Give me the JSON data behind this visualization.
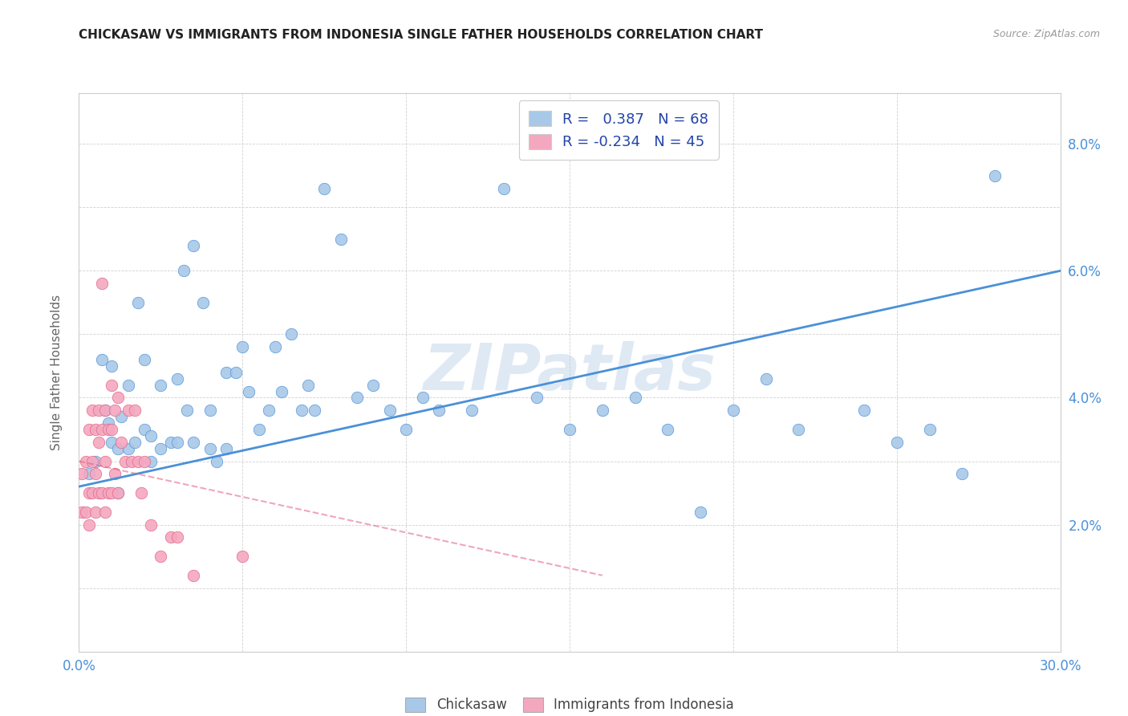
{
  "title": "CHICKASAW VS IMMIGRANTS FROM INDONESIA SINGLE FATHER HOUSEHOLDS CORRELATION CHART",
  "source": "Source: ZipAtlas.com",
  "ylabel": "Single Father Households",
  "x_min": 0.0,
  "x_max": 0.3,
  "y_min": 0.0,
  "y_max": 0.088,
  "x_ticks": [
    0.0,
    0.05,
    0.1,
    0.15,
    0.2,
    0.25,
    0.3
  ],
  "x_tick_labels": [
    "0.0%",
    "",
    "",
    "",
    "",
    "",
    "30.0%"
  ],
  "y_ticks": [
    0.0,
    0.01,
    0.02,
    0.03,
    0.04,
    0.05,
    0.06,
    0.07,
    0.08
  ],
  "y_tick_labels": [
    "",
    "",
    "2.0%",
    "",
    "4.0%",
    "",
    "6.0%",
    "",
    "8.0%"
  ],
  "legend_label1": "Chickasaw",
  "legend_label2": "Immigrants from Indonesia",
  "R1": 0.387,
  "N1": 68,
  "R2": -0.234,
  "N2": 45,
  "color1": "#a8c8e8",
  "color2": "#f4a8c0",
  "line_color1": "#4a90d9",
  "line_color2": "#e06080",
  "watermark": "ZIPatlas",
  "blue_scatter_x": [
    0.003,
    0.005,
    0.007,
    0.008,
    0.009,
    0.01,
    0.01,
    0.012,
    0.012,
    0.013,
    0.015,
    0.015,
    0.017,
    0.018,
    0.02,
    0.02,
    0.022,
    0.022,
    0.025,
    0.025,
    0.028,
    0.03,
    0.03,
    0.032,
    0.033,
    0.035,
    0.035,
    0.038,
    0.04,
    0.04,
    0.042,
    0.045,
    0.045,
    0.048,
    0.05,
    0.052,
    0.055,
    0.058,
    0.06,
    0.062,
    0.065,
    0.068,
    0.07,
    0.072,
    0.075,
    0.08,
    0.085,
    0.09,
    0.095,
    0.1,
    0.105,
    0.11,
    0.12,
    0.13,
    0.14,
    0.15,
    0.16,
    0.17,
    0.18,
    0.19,
    0.2,
    0.21,
    0.22,
    0.24,
    0.25,
    0.26,
    0.27,
    0.28
  ],
  "blue_scatter_y": [
    0.028,
    0.03,
    0.046,
    0.038,
    0.036,
    0.045,
    0.033,
    0.032,
    0.025,
    0.037,
    0.042,
    0.032,
    0.033,
    0.055,
    0.035,
    0.046,
    0.034,
    0.03,
    0.042,
    0.032,
    0.033,
    0.043,
    0.033,
    0.06,
    0.038,
    0.064,
    0.033,
    0.055,
    0.038,
    0.032,
    0.03,
    0.032,
    0.044,
    0.044,
    0.048,
    0.041,
    0.035,
    0.038,
    0.048,
    0.041,
    0.05,
    0.038,
    0.042,
    0.038,
    0.073,
    0.065,
    0.04,
    0.042,
    0.038,
    0.035,
    0.04,
    0.038,
    0.038,
    0.073,
    0.04,
    0.035,
    0.038,
    0.04,
    0.035,
    0.022,
    0.038,
    0.043,
    0.035,
    0.038,
    0.033,
    0.035,
    0.028,
    0.075
  ],
  "pink_scatter_x": [
    0.001,
    0.001,
    0.002,
    0.002,
    0.003,
    0.003,
    0.003,
    0.004,
    0.004,
    0.004,
    0.005,
    0.005,
    0.005,
    0.006,
    0.006,
    0.006,
    0.007,
    0.007,
    0.007,
    0.008,
    0.008,
    0.008,
    0.009,
    0.009,
    0.01,
    0.01,
    0.01,
    0.011,
    0.011,
    0.012,
    0.012,
    0.013,
    0.014,
    0.015,
    0.016,
    0.017,
    0.018,
    0.019,
    0.02,
    0.022,
    0.025,
    0.028,
    0.03,
    0.035,
    0.05
  ],
  "pink_scatter_y": [
    0.028,
    0.022,
    0.03,
    0.022,
    0.035,
    0.025,
    0.02,
    0.03,
    0.038,
    0.025,
    0.035,
    0.028,
    0.022,
    0.033,
    0.038,
    0.025,
    0.035,
    0.025,
    0.058,
    0.038,
    0.03,
    0.022,
    0.035,
    0.025,
    0.042,
    0.035,
    0.025,
    0.038,
    0.028,
    0.04,
    0.025,
    0.033,
    0.03,
    0.038,
    0.03,
    0.038,
    0.03,
    0.025,
    0.03,
    0.02,
    0.015,
    0.018,
    0.018,
    0.012,
    0.015
  ],
  "blue_line_x": [
    0.0,
    0.3
  ],
  "blue_line_y": [
    0.026,
    0.06
  ],
  "pink_line_x": [
    0.0,
    0.16
  ],
  "pink_line_y": [
    0.03,
    0.012
  ]
}
